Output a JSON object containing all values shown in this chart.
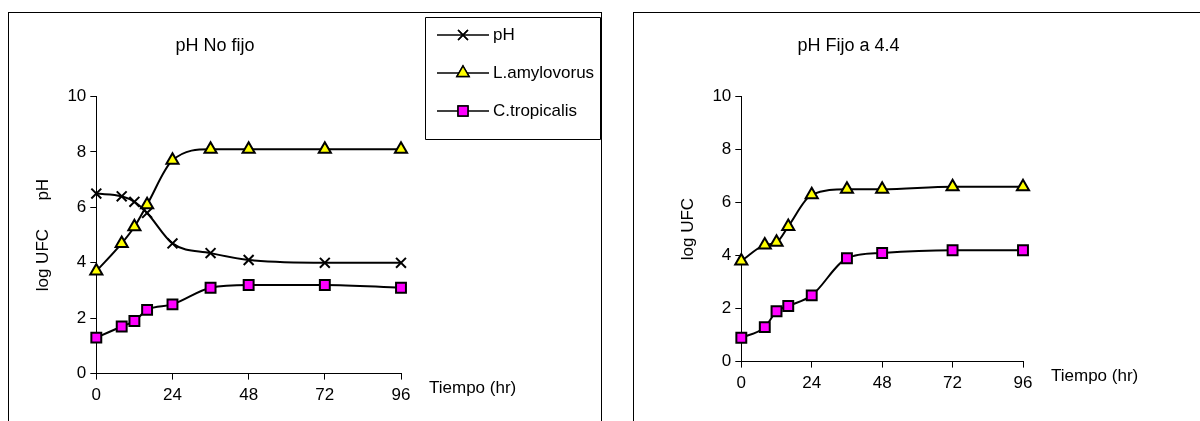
{
  "chart_data": [
    {
      "type": "line",
      "title": "pH No fijo",
      "xlabel": "Tiempo (hr)",
      "ylabel": "log UFC      pH",
      "x": [
        0,
        8,
        12,
        16,
        24,
        36,
        48,
        72,
        96
      ],
      "xlim": [
        0,
        96
      ],
      "xticks": [
        0,
        24,
        48,
        72,
        96
      ],
      "ylim": [
        0,
        10
      ],
      "yticks": [
        0,
        2,
        4,
        6,
        8,
        10
      ],
      "grid": false,
      "legend": "top right",
      "series": [
        {
          "name": "pH",
          "color": "#000000",
          "marker": "cross",
          "values": [
            6.5,
            6.4,
            6.2,
            5.8,
            4.7,
            4.35,
            4.1,
            4.0,
            4.0
          ]
        },
        {
          "name": "L.amylovorus",
          "color": "#ffff00",
          "marker": "triangle",
          "values": [
            3.7,
            4.7,
            5.3,
            6.1,
            7.7,
            8.1,
            8.1,
            8.1,
            8.1
          ]
        },
        {
          "name": "C.tropicalis",
          "color": "#ff00ff",
          "marker": "square",
          "values": [
            1.3,
            1.7,
            1.9,
            2.3,
            2.5,
            3.1,
            3.2,
            3.2,
            3.1
          ]
        }
      ]
    },
    {
      "type": "line",
      "title": "pH Fijo a 4.4",
      "xlabel": "Tiempo (hr)",
      "ylabel": "log UFC",
      "x": [
        0,
        8,
        12,
        16,
        24,
        36,
        48,
        72,
        96
      ],
      "xlim": [
        0,
        96
      ],
      "xticks": [
        0,
        24,
        48,
        72,
        96
      ],
      "ylim": [
        0,
        10
      ],
      "yticks": [
        0,
        2,
        4,
        6,
        8,
        10
      ],
      "grid": false,
      "series": [
        {
          "color": "#ffff00",
          "marker": "triangle",
          "values": [
            3.8,
            4.4,
            4.5,
            5.1,
            6.3,
            6.5,
            6.5,
            6.6,
            6.6
          ]
        },
        {
          "color": "#ff00ff",
          "marker": "square",
          "values": [
            0.9,
            1.3,
            1.9,
            2.1,
            2.5,
            3.9,
            4.1,
            4.2,
            4.2
          ]
        }
      ]
    }
  ]
}
